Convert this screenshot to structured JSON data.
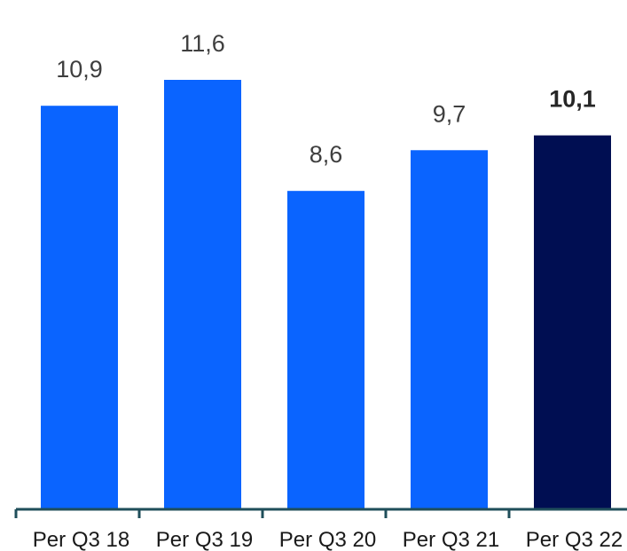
{
  "chart_data": {
    "type": "bar",
    "categories": [
      "Per Q3 18",
      "Per Q3 19",
      "Per Q3 20",
      "Per Q3 21",
      "Per Q3 22"
    ],
    "values": [
      10.9,
      11.6,
      8.6,
      9.7,
      10.1
    ],
    "value_labels": [
      "10,9",
      "11,6",
      "8,6",
      "9,7",
      "10,1"
    ],
    "highlight_index": 4,
    "ylim": [
      0,
      11.6
    ],
    "grid": false,
    "legend": "none",
    "colors": {
      "bar": "#0a64ff",
      "bar_highlight": "#000e52",
      "axis": "#1f4e5a"
    }
  }
}
